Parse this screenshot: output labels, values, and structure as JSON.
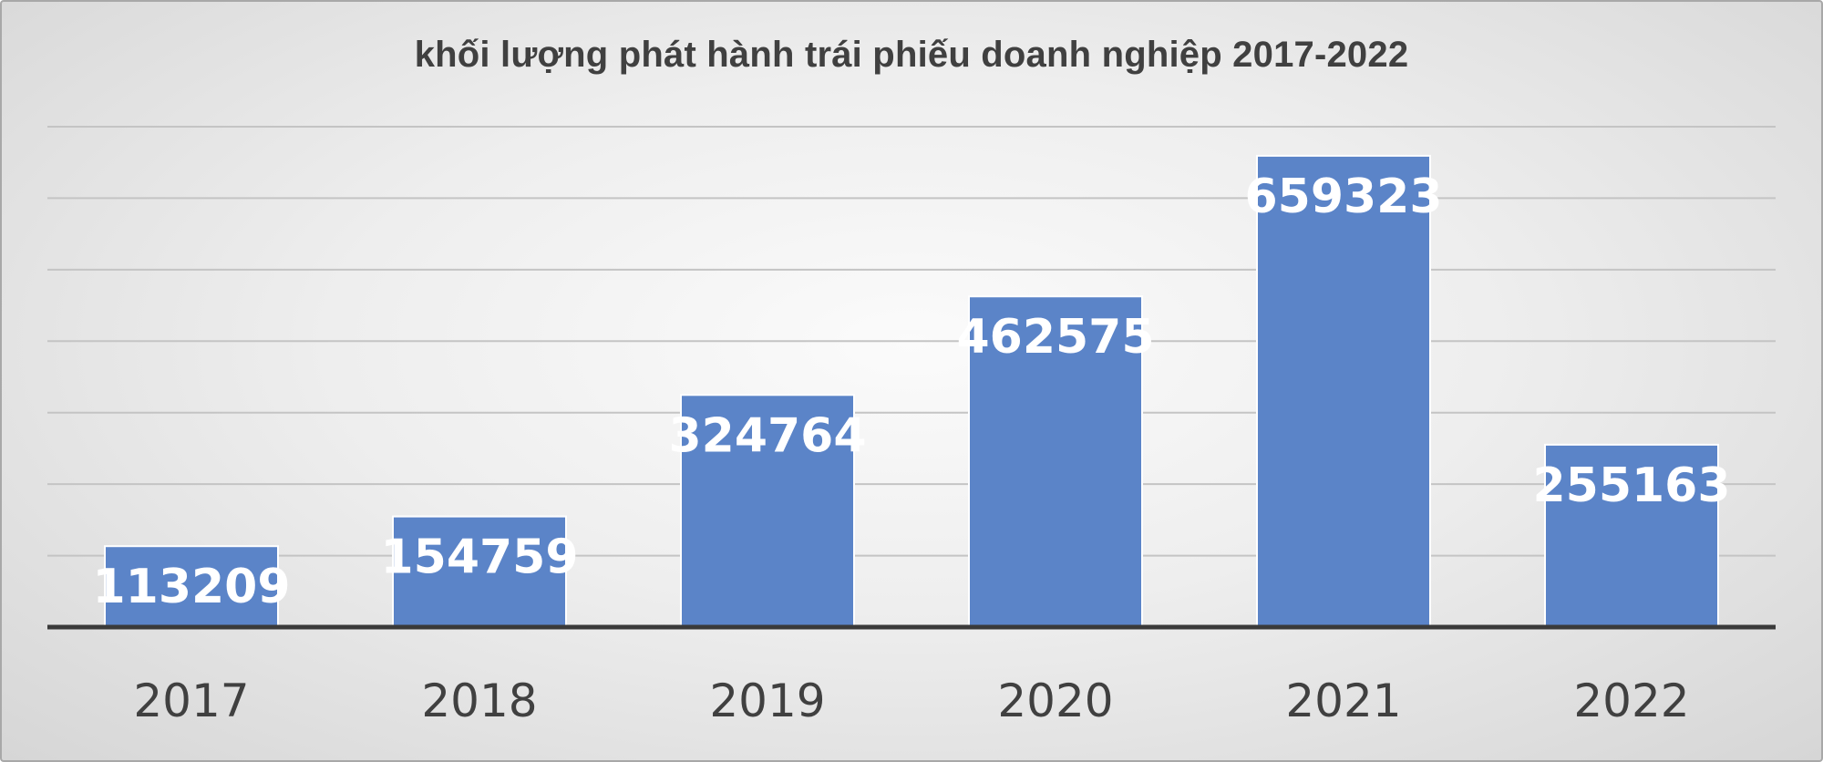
{
  "chart_data": {
    "type": "bar",
    "title": "khối lượng phát hành trái phiếu doanh nghiệp 2017-2022",
    "xlabel": "",
    "ylabel": "",
    "categories": [
      "2017",
      "2018",
      "2019",
      "2020",
      "2021",
      "2022"
    ],
    "values": [
      113209,
      154759,
      324764,
      462575,
      659323,
      255163
    ],
    "data_labels": [
      "113209",
      "154759",
      "324764",
      "462575",
      "659323",
      "255163"
    ],
    "ylim": [
      0,
      700000
    ],
    "y_grid_step": 100000,
    "grid": true,
    "legend": "none",
    "bar_color": "#5b84c8",
    "bar_edge_color": "#ffffff",
    "data_label_color": "#ffffff",
    "gridline_color": "#c4c4c4",
    "axis_color": "#3a3a3a",
    "text_color": "#404040"
  }
}
